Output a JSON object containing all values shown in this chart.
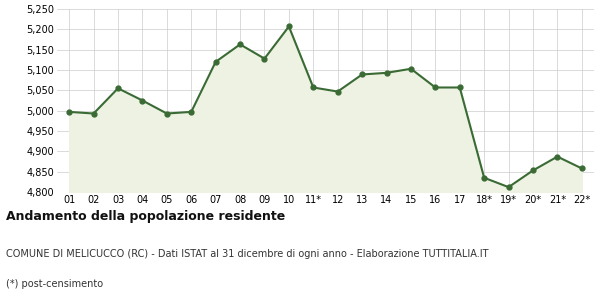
{
  "x_labels": [
    "01",
    "02",
    "03",
    "04",
    "05",
    "06",
    "07",
    "08",
    "09",
    "10",
    "11*",
    "12",
    "13",
    "14",
    "15",
    "16",
    "17",
    "18*",
    "19*",
    "20*",
    "21*",
    "22*"
  ],
  "y_values": [
    4997,
    4993,
    5055,
    5025,
    4993,
    4997,
    5120,
    5163,
    5128,
    5207,
    5057,
    5047,
    5089,
    5093,
    5103,
    5057,
    5057,
    4835,
    4812,
    4853,
    4887,
    4858
  ],
  "line_color": "#3a6b35",
  "fill_color": "#eef2e2",
  "marker_color": "#3a6b35",
  "bg_color": "#ffffff",
  "grid_color": "#cccccc",
  "ylim": [
    4800,
    5250
  ],
  "yticks": [
    4800,
    4850,
    4900,
    4950,
    5000,
    5050,
    5100,
    5150,
    5200,
    5250
  ],
  "title": "Andamento della popolazione residente",
  "subtitle": "COMUNE DI MELICUCCO (RC) - Dati ISTAT al 31 dicembre di ogni anno - Elaborazione TUTTITALIA.IT",
  "footnote": "(*) post-censimento",
  "title_fontsize": 9,
  "subtitle_fontsize": 7,
  "footnote_fontsize": 7,
  "tick_fontsize": 7,
  "line_width": 1.5,
  "marker_size": 3.5
}
